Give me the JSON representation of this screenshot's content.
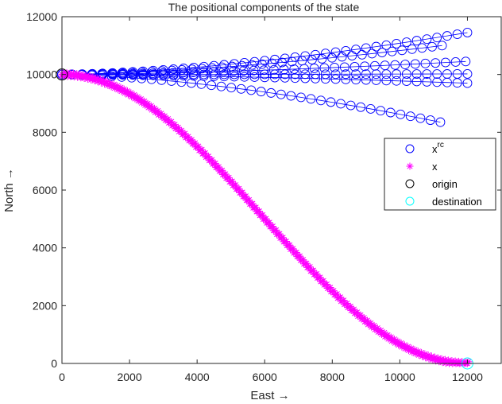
{
  "chart_data": {
    "type": "scatter",
    "title": "The positional components of the state",
    "xlabel": "East →",
    "ylabel": "North →",
    "xlim": [
      0,
      13000
    ],
    "ylim": [
      0,
      12000
    ],
    "xticks": [
      0,
      2000,
      4000,
      6000,
      8000,
      10000,
      12000
    ],
    "yticks": [
      0,
      2000,
      4000,
      6000,
      8000,
      10000,
      12000
    ],
    "grid": false,
    "legend_position": "right-middle",
    "legend": [
      {
        "label": "x",
        "sup": "rc",
        "marker": "circle",
        "color": "#0000ff"
      },
      {
        "label": "x",
        "sup": "",
        "marker": "asterisk",
        "color": "#ff00ff"
      },
      {
        "label": "origin",
        "sup": "",
        "marker": "circle",
        "color": "#000000"
      },
      {
        "label": "destination",
        "sup": "",
        "marker": "circle",
        "color": "#00ffff"
      }
    ],
    "origin": {
      "x": 0,
      "y": 10000
    },
    "destination": {
      "x": 12000,
      "y": 0
    },
    "series": [
      {
        "name": "x^rc",
        "marker": "circle",
        "color": "#0000ff",
        "trajectories": [
          {
            "start": [
              0,
              10000
            ],
            "end": [
              12000,
              11450
            ],
            "points": 40
          },
          {
            "start": [
              0,
              10000
            ],
            "end": [
              11250,
              11000
            ],
            "points": 38
          },
          {
            "start": [
              0,
              10000
            ],
            "end": [
              11950,
              10450
            ],
            "points": 40
          },
          {
            "start": [
              0,
              10000
            ],
            "end": [
              12000,
              10020
            ],
            "points": 40
          },
          {
            "start": [
              0,
              10000
            ],
            "end": [
              12000,
              9700
            ],
            "points": 40
          },
          {
            "start": [
              0,
              10000
            ],
            "end": [
              11200,
              8350
            ],
            "points": 38
          }
        ]
      },
      {
        "name": "x",
        "marker": "asterisk",
        "color": "#ff00ff",
        "description": "S-curve from origin to destination, approx y = 5000*(1+cos(pi*x/12000))",
        "x": [
          0,
          1000,
          2000,
          3000,
          4000,
          5000,
          6000,
          7000,
          8000,
          9000,
          10000,
          11000,
          11500,
          12000
        ],
        "y": [
          10000,
          9850,
          9280,
          8500,
          7300,
          6250,
          5100,
          3800,
          2700,
          1650,
          850,
          250,
          60,
          0
        ]
      }
    ]
  }
}
